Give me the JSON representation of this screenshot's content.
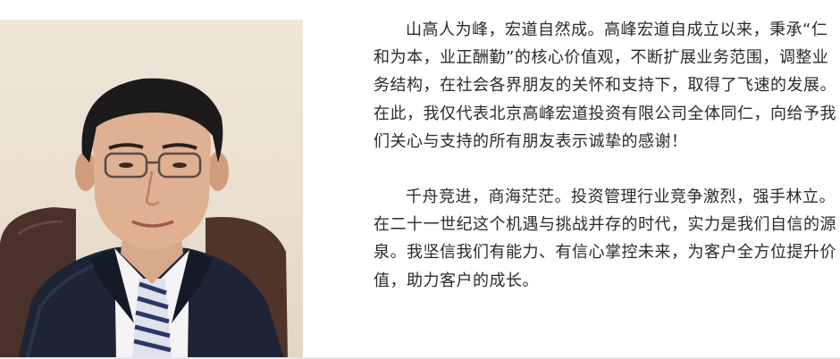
{
  "photo": {
    "icon": "portrait-photo"
  },
  "message": {
    "paragraphs": [
      "山高人为峰，宏道自然成。高峰宏道自成立以来，秉承“仁和为本，业正酬勤”的核心价值观，不断扩展业务范围，调整业务结构，在社会各界朋友的关怀和支持下，取得了飞速的发展。在此，我仅代表北京高峰宏道投资有限公司全体同仁，向给予我们关心与支持的所有朋友表示诚挚的感谢！",
      "千舟竞进，商海茫茫。投资管理行业竞争激烈，强手林立。在二十一世纪这个机遇与挑战并存的时代，实力是我们自信的源泉。我坚信我们有能力、有信心掌控未来，为客户全方位提升价值，助力客户的成长。"
    ]
  }
}
